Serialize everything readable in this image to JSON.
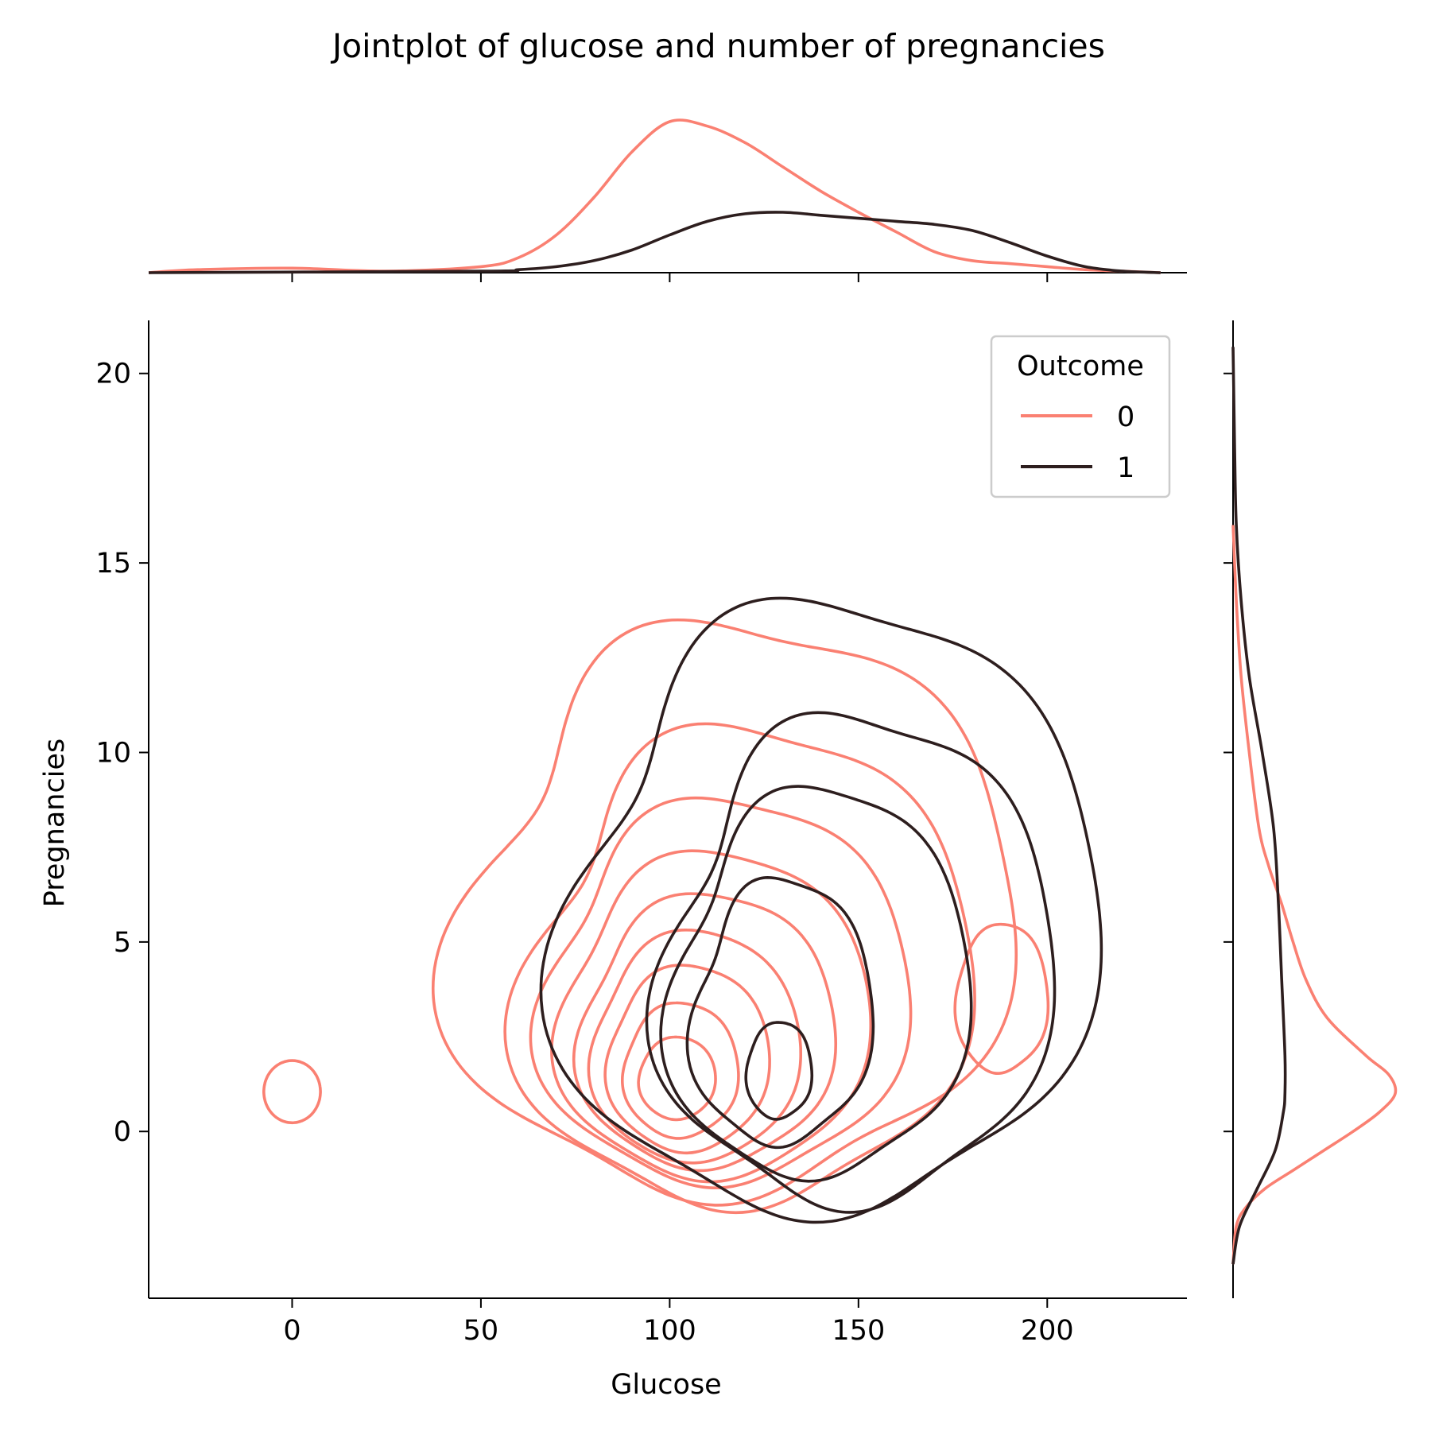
{
  "chart_data": {
    "type": "kde-jointplot",
    "title": "Jointplot of glucose and number of pregnancies",
    "xlabel": "Glucose",
    "ylabel": "Pregnancies",
    "xlim": [
      -38,
      237
    ],
    "ylim": [
      -4.4,
      21.4
    ],
    "x_ticks": [
      0,
      50,
      100,
      150,
      200
    ],
    "y_ticks": [
      0,
      5,
      10,
      15,
      20
    ],
    "grid": false,
    "legend": {
      "title": "Outcome",
      "placement": "top-right",
      "entries": [
        {
          "label": "0",
          "color": "#fa8072"
        },
        {
          "label": "1",
          "color": "#2d1e1e"
        }
      ]
    },
    "series": [
      {
        "key": "outcome-0",
        "color": "#fa8072",
        "contours": [
          {
            "cx": 0,
            "cy": 1.05,
            "rx": 7.5,
            "ry": 0.82,
            "amp": [
              0,
              0,
              0,
              0
            ]
          },
          {
            "cx": 118,
            "cy": 5.7,
            "rx": 70,
            "ry": 7.8,
            "amp": [
              0.07,
              0.05,
              0.04,
              0.06
            ]
          },
          {
            "cx": 121,
            "cy": 4.2,
            "rx": 57,
            "ry": 6.5,
            "amp": [
              0.06,
              0.05,
              0.04,
              0.05
            ]
          },
          {
            "cx": 115,
            "cy": 3.6,
            "rx": 47,
            "ry": 5.2,
            "amp": [
              0.05,
              0.04,
              0.03,
              0.04
            ]
          },
          {
            "cx": 112,
            "cy": 3.0,
            "rx": 40,
            "ry": 4.4,
            "amp": [
              0.04,
              0.03,
              0.03,
              0.03
            ]
          },
          {
            "cx": 110,
            "cy": 2.6,
            "rx": 33,
            "ry": 3.7,
            "amp": [
              0.04,
              0.03,
              0.02,
              0.03
            ]
          },
          {
            "cx": 107,
            "cy": 2.2,
            "rx": 27,
            "ry": 3.1,
            "amp": [
              0.03,
              0.03,
              0.02,
              0.02
            ]
          },
          {
            "cx": 105,
            "cy": 1.9,
            "rx": 21,
            "ry": 2.5,
            "amp": [
              0.03,
              0.02,
              0.02,
              0.02
            ]
          },
          {
            "cx": 103,
            "cy": 1.6,
            "rx": 15,
            "ry": 1.8,
            "amp": [
              0.02,
              0.02,
              0.01,
              0.02
            ]
          },
          {
            "cx": 102,
            "cy": 1.4,
            "rx": 10,
            "ry": 1.1,
            "amp": [
              0.02,
              0.01,
              0.01,
              0.01
            ]
          },
          {
            "cx": 188,
            "cy": 3.5,
            "rx": 12,
            "ry": 2.0,
            "amp": [
              0.03,
              0.02,
              0.0,
              0.02
            ]
          }
        ],
        "marginal_x": {
          "x": [
            -38,
            -25,
            0,
            25,
            50,
            60,
            70,
            80,
            90,
            100,
            110,
            120,
            130,
            140,
            150,
            160,
            170,
            180,
            190,
            200,
            210,
            220,
            230
          ],
          "density": [
            0.0,
            0.02,
            0.03,
            0.01,
            0.04,
            0.1,
            0.25,
            0.5,
            0.8,
            1.0,
            0.97,
            0.86,
            0.7,
            0.54,
            0.4,
            0.27,
            0.14,
            0.08,
            0.06,
            0.04,
            0.02,
            0.01,
            0.0
          ]
        },
        "marginal_y": {
          "y": [
            -3.5,
            -2.5,
            -2,
            -1.5,
            -1,
            -0.5,
            0,
            0.5,
            1,
            1.5,
            2,
            3,
            4,
            5,
            6,
            7,
            8,
            10,
            12,
            14,
            16
          ],
          "density": [
            0.0,
            0.02,
            0.08,
            0.2,
            0.38,
            0.56,
            0.74,
            0.9,
            1.0,
            0.96,
            0.82,
            0.58,
            0.45,
            0.37,
            0.3,
            0.22,
            0.16,
            0.1,
            0.05,
            0.02,
            0.0
          ]
        }
      },
      {
        "key": "outcome-1",
        "color": "#2d1e1e",
        "contours": [
          {
            "cx": 143,
            "cy": 5.7,
            "rx": 68,
            "ry": 8.3,
            "amp": [
              0.06,
              0.05,
              0.04,
              0.05
            ]
          },
          {
            "cx": 150,
            "cy": 4.4,
            "rx": 50,
            "ry": 6.6,
            "amp": [
              0.05,
              0.04,
              0.04,
              0.05
            ]
          },
          {
            "cx": 140,
            "cy": 3.8,
            "rx": 38,
            "ry": 5.3,
            "amp": [
              0.06,
              0.05,
              0.03,
              0.04
            ]
          },
          {
            "cx": 130,
            "cy": 3.1,
            "rx": 23,
            "ry": 3.6,
            "amp": [
              0.05,
              0.04,
              0.03,
              0.04
            ]
          },
          {
            "cx": 129,
            "cy": 1.6,
            "rx": 8.5,
            "ry": 1.3,
            "amp": [
              0.03,
              0.02,
              0.0,
              0.02
            ]
          }
        ],
        "marginal_x": {
          "x": [
            -38,
            50,
            60,
            70,
            80,
            90,
            100,
            110,
            120,
            130,
            140,
            150,
            160,
            170,
            180,
            190,
            200,
            210,
            220,
            230
          ],
          "density": [
            0.0,
            0.01,
            0.02,
            0.04,
            0.08,
            0.15,
            0.25,
            0.34,
            0.39,
            0.4,
            0.38,
            0.36,
            0.34,
            0.32,
            0.28,
            0.2,
            0.11,
            0.04,
            0.01,
            0.0
          ]
        },
        "marginal_y": {
          "y": [
            -3.5,
            -2.5,
            -1.5,
            -0.5,
            0.5,
            1,
            2,
            4,
            6,
            8,
            10,
            12,
            14,
            16,
            18,
            20.7
          ],
          "density": [
            0.0,
            0.04,
            0.15,
            0.26,
            0.31,
            0.32,
            0.32,
            0.3,
            0.28,
            0.25,
            0.18,
            0.1,
            0.05,
            0.02,
            0.01,
            0.0
          ]
        }
      }
    ]
  }
}
